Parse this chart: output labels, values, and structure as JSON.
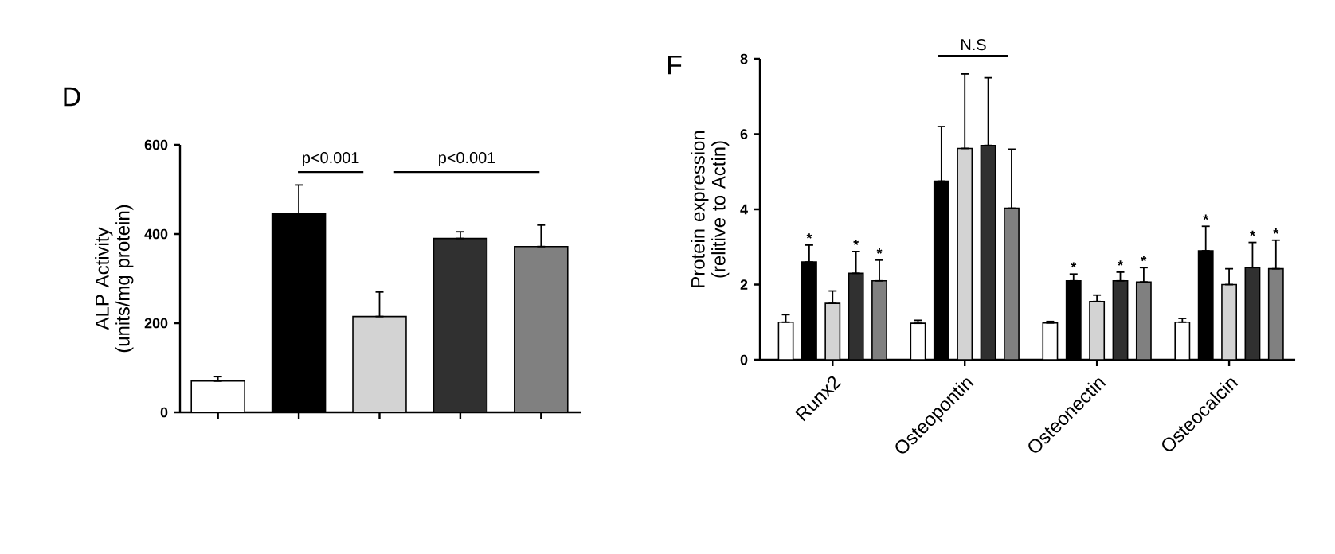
{
  "chart_data": [
    {
      "type": "bar",
      "title": "D",
      "ylabel": "ALP Activity (units/mg protein)",
      "categories": [
        null,
        null,
        null,
        null,
        null
      ],
      "values": [
        70,
        445,
        215,
        390,
        372
      ],
      "colors": [
        "#ffffff",
        "#000000",
        "#d3d3d3",
        "#303030",
        "#808080"
      ],
      "errors": [
        [
          70,
          80
        ],
        [
          445,
          510
        ],
        [
          215,
          270
        ],
        [
          390,
          405
        ],
        [
          372,
          420
        ]
      ],
      "ylim": [
        0,
        600
      ],
      "yticks": [
        0,
        200,
        400,
        600
      ],
      "tick_labels": "y",
      "annotations": [
        "p<0.001",
        "p<0.001"
      ]
    },
    {
      "type": "bar",
      "title": "F",
      "ylabel": "Protein expression (relitive to Actin)",
      "categories": [
        "Runx2",
        "Osteopontin",
        "Osteonectin",
        "Osteocalcin"
      ],
      "series": [
        {
          "color": "#ffffff",
          "values": [
            1.0,
            0.97,
            0.98,
            1.0
          ],
          "errors": [
            [
              1.0,
              1.2
            ],
            [
              0.97,
              1.05
            ],
            [
              0.98,
              1.02
            ],
            [
              1.0,
              1.1
            ]
          ]
        },
        {
          "color": "#000000",
          "values": [
            2.6,
            4.75,
            2.1,
            2.9
          ],
          "errors": [
            [
              2.6,
              3.05
            ],
            [
              4.75,
              6.2
            ],
            [
              2.1,
              2.28
            ],
            [
              2.9,
              3.55
            ]
          ],
          "value_labels": [
            "*",
            null,
            "*",
            "*"
          ]
        },
        {
          "color": "#d3d3d3",
          "values": [
            1.5,
            5.62,
            1.55,
            2.0
          ],
          "errors": [
            [
              1.5,
              1.83
            ],
            [
              5.62,
              7.6
            ],
            [
              1.55,
              1.72
            ],
            [
              2.0,
              2.42
            ]
          ]
        },
        {
          "color": "#303030",
          "values": [
            2.3,
            5.7,
            2.1,
            2.45
          ],
          "errors": [
            [
              2.3,
              2.88
            ],
            [
              5.7,
              7.5
            ],
            [
              2.1,
              2.33
            ],
            [
              2.45,
              3.12
            ]
          ],
          "value_labels": [
            "*",
            null,
            "*",
            "*"
          ]
        },
        {
          "color": "#808080",
          "values": [
            2.1,
            4.03,
            2.07,
            2.42
          ],
          "errors": [
            [
              2.1,
              2.65
            ],
            [
              4.03,
              5.6
            ],
            [
              2.07,
              2.45
            ],
            [
              2.42,
              3.18
            ]
          ],
          "value_labels": [
            "*",
            null,
            "*",
            "*"
          ]
        }
      ],
      "ylim": [
        0,
        8
      ],
      "yticks": [
        0,
        2,
        4,
        6,
        8
      ],
      "annotations": [
        "N.S"
      ]
    }
  ]
}
